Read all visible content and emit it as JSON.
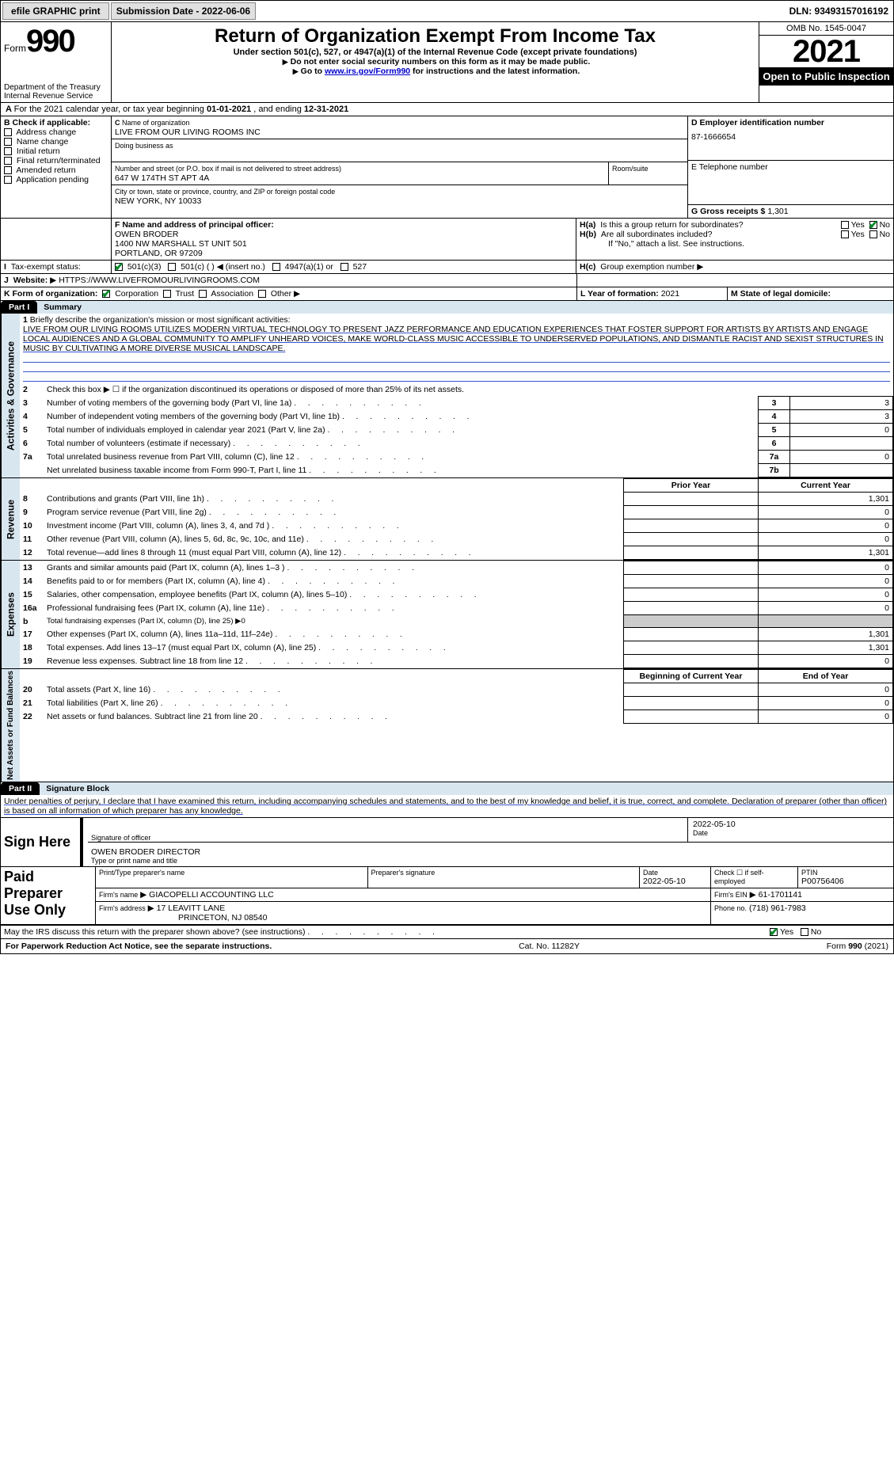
{
  "topbar": {
    "efile": "efile GRAPHIC print",
    "submission": "Submission Date - 2022-06-06",
    "dln": "DLN: 93493157016192"
  },
  "header": {
    "form_label": "Form",
    "form_no": "990",
    "dept": "Department of the Treasury Internal Revenue Service",
    "title": "Return of Organization Exempt From Income Tax",
    "sub": "Under section 501(c), 527, or 4947(a)(1) of the Internal Revenue Code (except private foundations)",
    "note1_pre": "Do not enter social security numbers on this form as it may be made public.",
    "note2_pre": "Go to ",
    "note2_link": "www.irs.gov/Form990",
    "note2_post": " for instructions and the latest information.",
    "omb": "OMB No. 1545-0047",
    "year": "2021",
    "open": "Open to Public Inspection"
  },
  "A": {
    "text_pre": "For the 2021 calendar year, or tax year beginning ",
    "begin": "01-01-2021",
    "mid": " , and ending ",
    "end": "12-31-2021"
  },
  "B": {
    "label": "B Check if applicable:",
    "items": [
      "Address change",
      "Name change",
      "Initial return",
      "Final return/terminated",
      "Amended return",
      "Application pending"
    ],
    "checked_idx": -1
  },
  "C": {
    "name_label": "Name of organization",
    "name": "LIVE FROM OUR LIVING ROOMS INC",
    "dba_label": "Doing business as",
    "dba": "",
    "street_label": "Number and street (or P.O. box if mail is not delivered to street address)",
    "street": "647 W 174TH ST APT 4A",
    "room_label": "Room/suite",
    "city_label": "City or town, state or province, country, and ZIP or foreign postal code",
    "city": "NEW YORK, NY  10033"
  },
  "D": {
    "label": "D Employer identification number",
    "val": "87-1666654"
  },
  "E": {
    "label": "E Telephone number",
    "val": ""
  },
  "G": {
    "label": "G Gross receipts $",
    "val": "1,301"
  },
  "F": {
    "label": "F  Name and address of principal officer:",
    "name": "OWEN BRODER",
    "addr1": "1400 NW MARSHALL ST UNIT 501",
    "addr2": "PORTLAND, OR  97209"
  },
  "H": {
    "a": "Is this a group return for subordinates?",
    "a_yes": "Yes",
    "a_no": "No",
    "a_val": "No",
    "b": "Are all subordinates included?",
    "b_note": "If \"No,\" attach a list. See instructions.",
    "c": "Group exemption number"
  },
  "I": {
    "label": "Tax-exempt status:",
    "opts": [
      "501(c)(3)",
      "501(c) (  )",
      "4947(a)(1) or",
      "527"
    ],
    "insert": "(insert no.)"
  },
  "J": {
    "label": "Website:",
    "val": "HTTPS://WWW.LIVEFROMOURLIVINGROOMS.COM"
  },
  "K": {
    "label": "K Form of organization:",
    "opts": [
      "Corporation",
      "Trust",
      "Association",
      "Other"
    ],
    "checked": "Corporation"
  },
  "L": {
    "label": "L Year of formation:",
    "val": "2021"
  },
  "M": {
    "label": "M State of legal domicile:",
    "val": ""
  },
  "part1": {
    "tab": "Part I",
    "title": "Summary"
  },
  "mission_label": "Briefly describe the organization's mission or most significant activities:",
  "mission": "LIVE FROM OUR LIVING ROOMS UTILIZES MODERN VIRTUAL TECHNOLOGY TO PRESENT JAZZ PERFORMANCE AND EDUCATION EXPERIENCES THAT FOSTER SUPPORT FOR ARTISTS BY ARTISTS AND ENGAGE LOCAL AUDIENCES AND A GLOBAL COMMUNITY TO AMPLIFY UNHEARD VOICES, MAKE WORLD-CLASS MUSIC ACCESSIBLE TO UNDERSERVED POPULATIONS, AND DISMANTLE RACIST AND SEXIST STRUCTURES IN MUSIC BY CULTIVATING A MORE DIVERSE MUSICAL LANDSCAPE.",
  "lines_gov": [
    {
      "n": "2",
      "t": "Check this box ▶ ☐  if the organization discontinued its operations or disposed of more than 25% of its net assets."
    },
    {
      "n": "3",
      "t": "Number of voting members of the governing body (Part VI, line 1a)",
      "box": "3",
      "v": "3"
    },
    {
      "n": "4",
      "t": "Number of independent voting members of the governing body (Part VI, line 1b)",
      "box": "4",
      "v": "3"
    },
    {
      "n": "5",
      "t": "Total number of individuals employed in calendar year 2021 (Part V, line 2a)",
      "box": "5",
      "v": "0"
    },
    {
      "n": "6",
      "t": "Total number of volunteers (estimate if necessary)",
      "box": "6",
      "v": ""
    },
    {
      "n": "7a",
      "t": "Total unrelated business revenue from Part VIII, column (C), line 12",
      "box": "7a",
      "v": "0"
    },
    {
      "n": "",
      "t": "Net unrelated business taxable income from Form 990-T, Part I, line 11",
      "box": "7b",
      "v": ""
    }
  ],
  "col_headers": {
    "prior": "Prior Year",
    "current": "Current Year",
    "begin": "Beginning of Current Year",
    "end": "End of Year"
  },
  "lines_rev": [
    {
      "n": "8",
      "t": "Contributions and grants (Part VIII, line 1h)",
      "p": "",
      "c": "1,301"
    },
    {
      "n": "9",
      "t": "Program service revenue (Part VIII, line 2g)",
      "p": "",
      "c": "0"
    },
    {
      "n": "10",
      "t": "Investment income (Part VIII, column (A), lines 3, 4, and 7d )",
      "p": "",
      "c": "0"
    },
    {
      "n": "11",
      "t": "Other revenue (Part VIII, column (A), lines 5, 6d, 8c, 9c, 10c, and 11e)",
      "p": "",
      "c": "0"
    },
    {
      "n": "12",
      "t": "Total revenue—add lines 8 through 11 (must equal Part VIII, column (A), line 12)",
      "p": "",
      "c": "1,301"
    }
  ],
  "lines_exp": [
    {
      "n": "13",
      "t": "Grants and similar amounts paid (Part IX, column (A), lines 1–3 )",
      "p": "",
      "c": "0"
    },
    {
      "n": "14",
      "t": "Benefits paid to or for members (Part IX, column (A), line 4)",
      "p": "",
      "c": "0"
    },
    {
      "n": "15",
      "t": "Salaries, other compensation, employee benefits (Part IX, column (A), lines 5–10)",
      "p": "",
      "c": "0"
    },
    {
      "n": "16a",
      "t": "Professional fundraising fees (Part IX, column (A), line 11e)",
      "p": "",
      "c": "0"
    },
    {
      "n": "b",
      "t": "Total fundraising expenses (Part IX, column (D), line 25) ▶0",
      "shaded": true
    },
    {
      "n": "17",
      "t": "Other expenses (Part IX, column (A), lines 11a–11d, 11f–24e)",
      "p": "",
      "c": "1,301"
    },
    {
      "n": "18",
      "t": "Total expenses. Add lines 13–17 (must equal Part IX, column (A), line 25)",
      "p": "",
      "c": "1,301"
    },
    {
      "n": "19",
      "t": "Revenue less expenses. Subtract line 18 from line 12",
      "p": "",
      "c": "0"
    }
  ],
  "lines_net": [
    {
      "n": "20",
      "t": "Total assets (Part X, line 16)",
      "p": "",
      "c": "0"
    },
    {
      "n": "21",
      "t": "Total liabilities (Part X, line 26)",
      "p": "",
      "c": "0"
    },
    {
      "n": "22",
      "t": "Net assets or fund balances. Subtract line 21 from line 20",
      "p": "",
      "c": "0"
    }
  ],
  "side_labels": {
    "gov": "Activities & Governance",
    "rev": "Revenue",
    "exp": "Expenses",
    "net": "Net Assets or Fund Balances"
  },
  "part2": {
    "tab": "Part II",
    "title": "Signature Block"
  },
  "decl": "Under penalties of perjury, I declare that I have examined this return, including accompanying schedules and statements, and to the best of my knowledge and belief, it is true, correct, and complete. Declaration of preparer (other than officer) is based on all information of which preparer has any knowledge.",
  "sign": {
    "here": "Sign Here",
    "sig_label": "Signature of officer",
    "date_label": "Date",
    "date": "2022-05-10",
    "name": "OWEN BRODER  DIRECTOR",
    "name_label": "Type or print name and title"
  },
  "paid": {
    "label": "Paid Preparer Use Only",
    "h1": "Print/Type preparer's name",
    "h2": "Preparer's signature",
    "h3": "Date",
    "date": "2022-05-10",
    "check": "Check ☐ if self-employed",
    "ptin_l": "PTIN",
    "ptin": "P00756406",
    "firm_l": "Firm's name",
    "firm": "GIACOPELLI ACCOUNTING LLC",
    "ein_l": "Firm's EIN",
    "ein": "61-1701141",
    "addr_l": "Firm's address",
    "addr": "17 LEAVITT LANE",
    "addr2": "PRINCETON, NJ  08540",
    "phone_l": "Phone no.",
    "phone": "(718) 961-7983"
  },
  "discuss": {
    "t": "May the IRS discuss this return with the preparer shown above? (see instructions)",
    "yes": "Yes",
    "no": "No"
  },
  "footer": {
    "left": "For Paperwork Reduction Act Notice, see the separate instructions.",
    "mid": "Cat. No. 11282Y",
    "right": "Form 990 (2021)"
  }
}
